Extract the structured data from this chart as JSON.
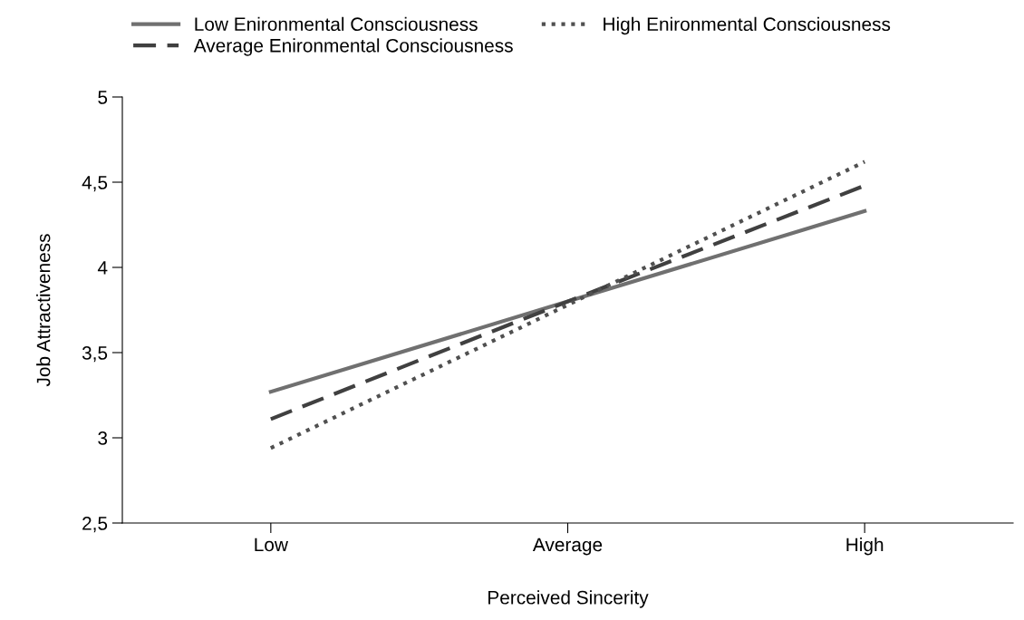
{
  "chart_data": {
    "type": "line",
    "xlabel": "Perceived Sincerity",
    "ylabel": "Job Attractiveness",
    "categories": [
      "Low",
      "Average",
      "High"
    ],
    "series": [
      {
        "name": "Low Enironmental Consciousness",
        "color": "#707070",
        "line_style": "solid",
        "values": [
          3.27,
          3.8,
          4.33
        ]
      },
      {
        "name": "Average Enironmental Consciousness",
        "color": "#404040",
        "line_style": "dashed",
        "values": [
          3.11,
          3.8,
          4.48
        ]
      },
      {
        "name": "High Enironmental Consciousness",
        "color": "#505050",
        "line_style": "dotted",
        "values": [
          2.94,
          3.78,
          4.62
        ]
      }
    ],
    "ylim": [
      2.5,
      5
    ],
    "yticks": [
      {
        "value": 2.5,
        "label": "2,5"
      },
      3,
      {
        "value": 3.5,
        "label": "3,5"
      },
      4,
      {
        "value": 4.5,
        "label": "4,5"
      },
      5
    ],
    "grid": false,
    "legend": "top",
    "marker": "none"
  }
}
